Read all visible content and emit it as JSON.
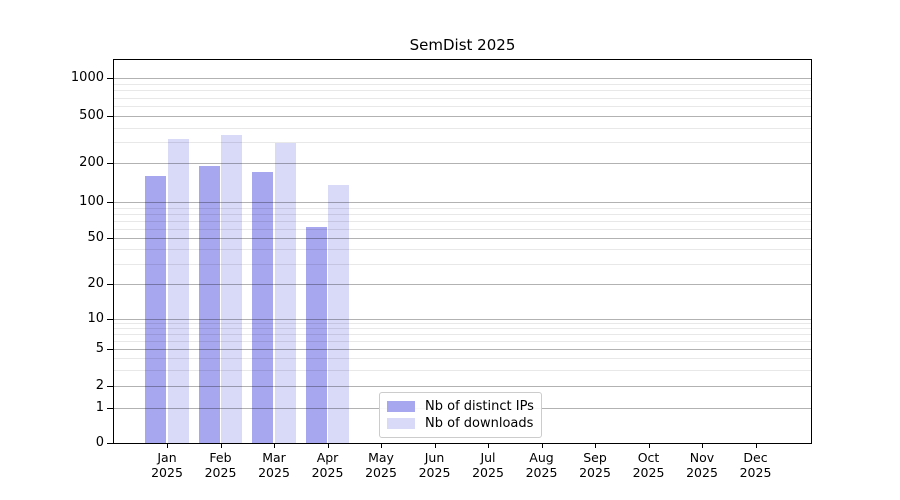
{
  "title": "SemDist 2025",
  "chart_data": {
    "type": "bar",
    "title": "SemDist 2025",
    "xlabel": "",
    "ylabel": "",
    "year": "2025",
    "categories": [
      "Jan",
      "Feb",
      "Mar",
      "Apr",
      "May",
      "Jun",
      "Jul",
      "Aug",
      "Sep",
      "Oct",
      "Nov",
      "Dec"
    ],
    "series": [
      {
        "name": "Nb of distinct IPs",
        "color": "#a7a7f0",
        "values": [
          160,
          190,
          172,
          62,
          null,
          null,
          null,
          null,
          null,
          null,
          null,
          null
        ]
      },
      {
        "name": "Nb of downloads",
        "color": "#d9d9f8",
        "values": [
          320,
          345,
          298,
          137,
          null,
          null,
          null,
          null,
          null,
          null,
          null,
          null
        ]
      }
    ],
    "y_scale": "symlog",
    "y_ticks": [
      0,
      1,
      2,
      5,
      10,
      20,
      50,
      100,
      200,
      500,
      1000
    ],
    "y_minor_ticks": [
      3,
      4,
      6,
      7,
      8,
      9,
      30,
      40,
      60,
      70,
      80,
      90,
      300,
      400,
      600,
      700,
      800,
      900
    ],
    "ylim": [
      0,
      1400
    ],
    "grid": "on",
    "legend_position": "lower-center-inside"
  }
}
